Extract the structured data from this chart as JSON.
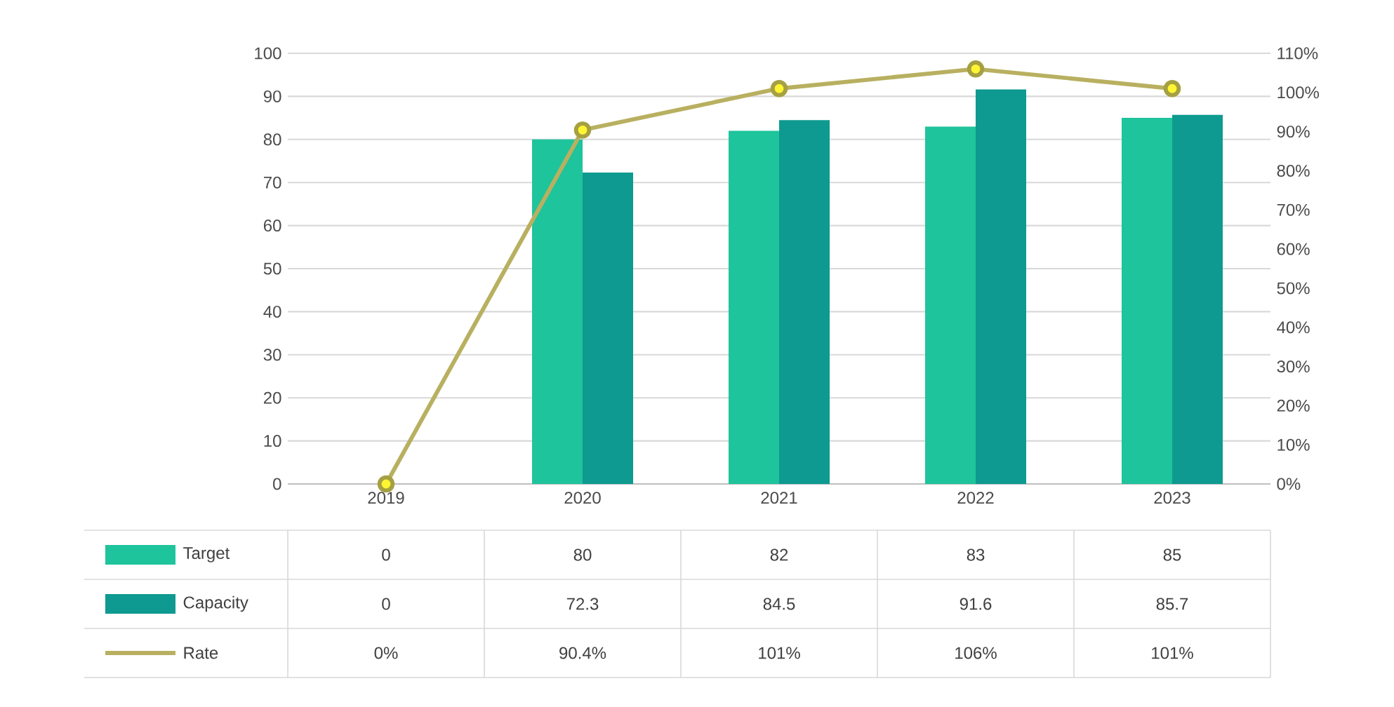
{
  "chart_data": {
    "type": "bar",
    "categories": [
      "2019",
      "2020",
      "2021",
      "2022",
      "2023"
    ],
    "series": [
      {
        "name": "Target",
        "color": "#1ec49c",
        "values": [
          0,
          80,
          82,
          83,
          85
        ],
        "value_labels": [
          "0",
          "80",
          "82",
          "83",
          "85"
        ]
      },
      {
        "name": "Capacity",
        "color": "#0e9a90",
        "values": [
          0,
          72.3,
          84.5,
          91.6,
          85.7
        ],
        "value_labels": [
          "0",
          "72.3",
          "84.5",
          "91.6",
          "85.7"
        ]
      },
      {
        "name": "Rate",
        "type": "line",
        "axis": "y2",
        "color": "#b8b060",
        "marker": "circle",
        "values": [
          0,
          90.4,
          101,
          106,
          101
        ],
        "value_labels": [
          "0%",
          "90.4%",
          "101%",
          "106%",
          "101%"
        ]
      }
    ],
    "ylim": [
      0,
      100
    ],
    "yticks": [
      0,
      10,
      20,
      30,
      40,
      50,
      60,
      70,
      80,
      90,
      100
    ],
    "y2lim": [
      0,
      110
    ],
    "y2ticks": [
      {
        "value": 0,
        "label": "0%"
      },
      {
        "value": 10,
        "label": "10%"
      },
      {
        "value": 20,
        "label": "20%"
      },
      {
        "value": 30,
        "label": "30%"
      },
      {
        "value": 40,
        "label": "40%"
      },
      {
        "value": 50,
        "label": "50%"
      },
      {
        "value": 60,
        "label": "60%"
      },
      {
        "value": 70,
        "label": "70%"
      },
      {
        "value": 80,
        "label": "80%"
      },
      {
        "value": 90,
        "label": "90%"
      },
      {
        "value": 100,
        "label": "100%"
      },
      {
        "value": 110,
        "label": "110%"
      }
    ],
    "grid": true,
    "legend": "bottom"
  }
}
